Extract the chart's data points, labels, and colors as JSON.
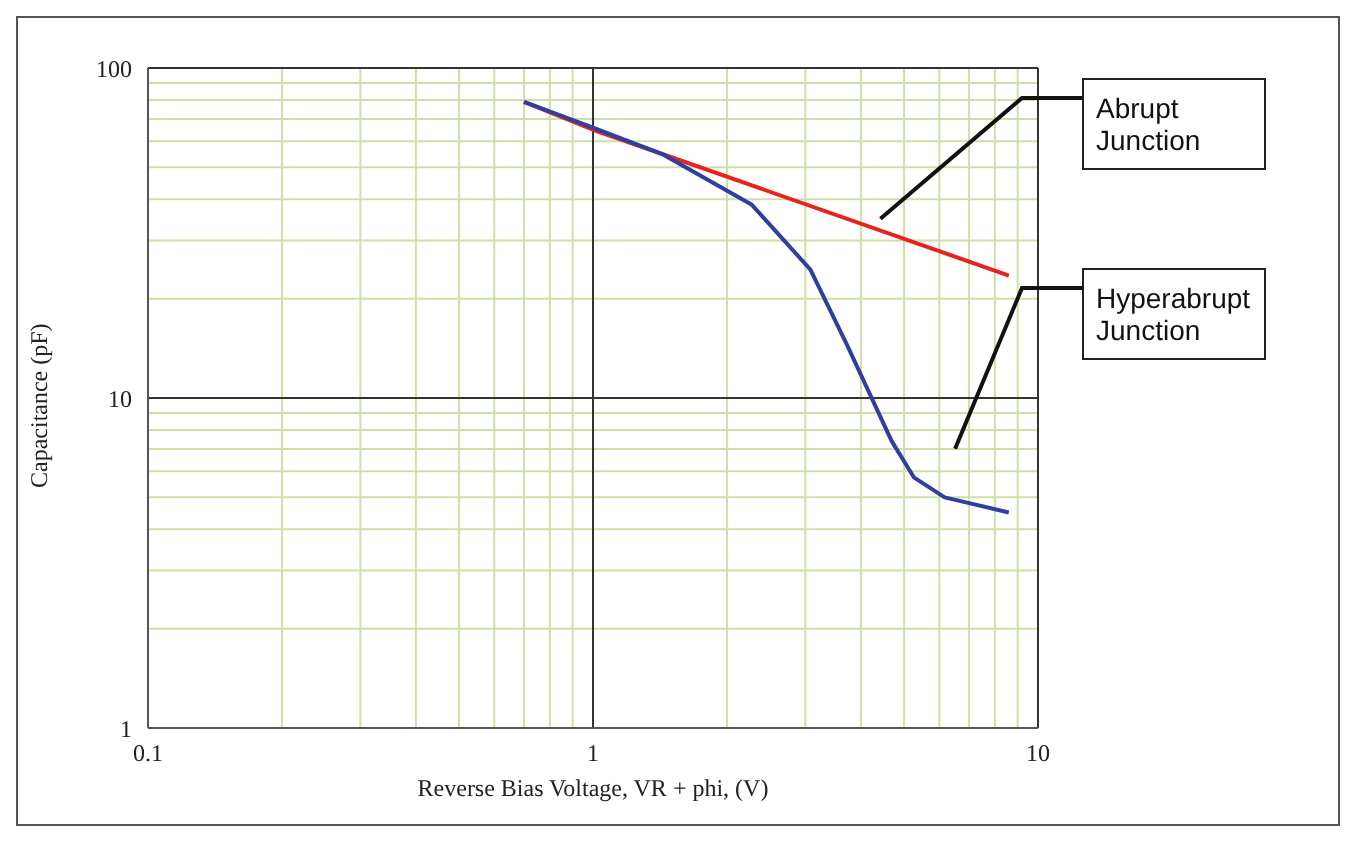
{
  "chart_data": {
    "type": "line",
    "xlabel": "Reverse Bias Voltage, VR + phi, (V)",
    "ylabel": "Capacitance (pF)",
    "log": "xy",
    "xlim": [
      0.1,
      10
    ],
    "ylim": [
      1,
      100
    ],
    "xticks": [
      0.1,
      {
        "value": 0.2,
        "label": null
      },
      {
        "value": 0.3,
        "label": null
      },
      {
        "value": 0.4,
        "label": null
      },
      {
        "value": 0.5,
        "label": null
      },
      {
        "value": 0.6,
        "label": null
      },
      {
        "value": 0.7,
        "label": null
      },
      {
        "value": 0.8,
        "label": null
      },
      {
        "value": 0.9,
        "label": null
      },
      1,
      {
        "value": 2,
        "label": null
      },
      {
        "value": 3,
        "label": null
      },
      {
        "value": 4,
        "label": null
      },
      {
        "value": 5,
        "label": null
      },
      {
        "value": 6,
        "label": null
      },
      {
        "value": 7,
        "label": null
      },
      {
        "value": 8,
        "label": null
      },
      {
        "value": 9,
        "label": null
      },
      10
    ],
    "yticks": [
      1,
      {
        "value": 2,
        "label": null
      },
      {
        "value": 3,
        "label": null
      },
      {
        "value": 4,
        "label": null
      },
      {
        "value": 5,
        "label": null
      },
      {
        "value": 6,
        "label": null
      },
      {
        "value": 7,
        "label": null
      },
      {
        "value": 8,
        "label": null
      },
      {
        "value": 9,
        "label": null
      },
      10,
      {
        "value": 20,
        "label": null
      },
      {
        "value": 30,
        "label": null
      },
      {
        "value": 40,
        "label": null
      },
      {
        "value": 50,
        "label": null
      },
      {
        "value": 60,
        "label": null
      },
      {
        "value": 70,
        "label": null
      },
      {
        "value": 80,
        "label": null
      },
      {
        "value": 90,
        "label": null
      },
      100
    ],
    "grid": true,
    "legend": false,
    "marker": "none",
    "line_style": "solid",
    "series": [
      {
        "name": "Abrupt Junction",
        "color": "#e8231e",
        "x": [
          0.7,
          1,
          8.6
        ],
        "values": [
          79,
          65,
          23.5
        ]
      },
      {
        "name": "Hyperabrupt Junction",
        "color": "#2e3f9e",
        "x": [
          0.7,
          1,
          1.44,
          2.27,
          3.08,
          3.72,
          4.69,
          5.26,
          6.17,
          8.6
        ],
        "values": [
          79,
          66,
          54.6,
          38.6,
          24.5,
          14.5,
          7.4,
          5.75,
          5.0,
          4.5
        ]
      }
    ]
  }
}
